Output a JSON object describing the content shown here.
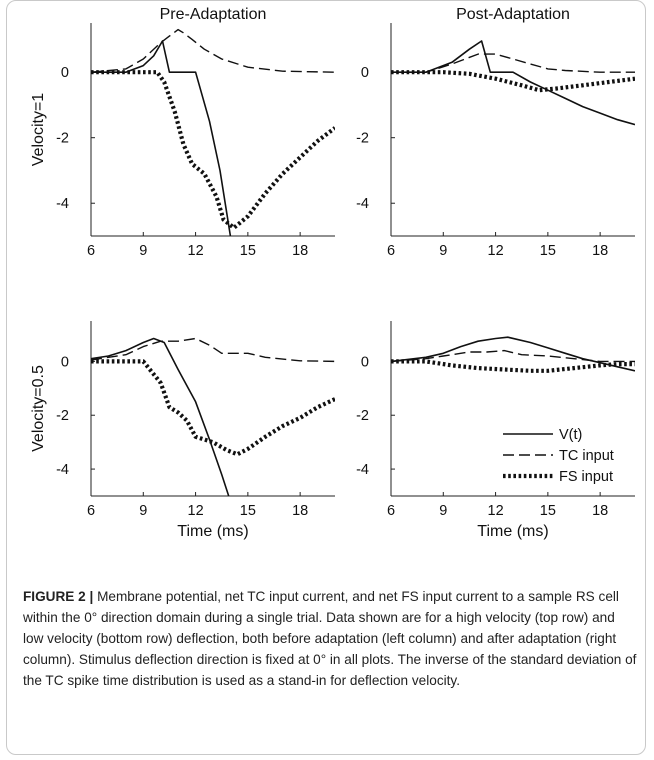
{
  "chart_data": [
    {
      "type": "line",
      "title": "Pre-Adaptation",
      "ylabel": "Velocity=1",
      "xlabel": "",
      "xlim": [
        6,
        20
      ],
      "ylim": [
        -5,
        1.5
      ],
      "xticks": [
        6,
        9,
        12,
        15,
        18
      ],
      "yticks": [
        -4,
        -2,
        0
      ],
      "series": [
        {
          "name": "V(t)",
          "style": "solid",
          "points": [
            [
              6,
              0
            ],
            [
              8,
              0
            ],
            [
              9,
              0.2
            ],
            [
              9.6,
              0.5
            ],
            [
              10.1,
              0.95
            ],
            [
              10.5,
              0
            ],
            [
              12,
              0
            ],
            [
              12.8,
              -1.5
            ],
            [
              13.4,
              -3
            ],
            [
              14,
              -5
            ]
          ]
        },
        {
          "name": "TC input",
          "style": "dashed",
          "points": [
            [
              6,
              0
            ],
            [
              8,
              0.1
            ],
            [
              9,
              0.4
            ],
            [
              10,
              0.9
            ],
            [
              10.5,
              1.1
            ],
            [
              11,
              1.3
            ],
            [
              11.3,
              1.2
            ],
            [
              11.8,
              1
            ],
            [
              12.5,
              0.7
            ],
            [
              13.5,
              0.4
            ],
            [
              15,
              0.15
            ],
            [
              17,
              0.03
            ],
            [
              20,
              0
            ]
          ]
        },
        {
          "name": "FS input",
          "style": "dotted",
          "points": [
            [
              6,
              0
            ],
            [
              9.8,
              0
            ],
            [
              10.2,
              -0.3
            ],
            [
              10.8,
              -1.2
            ],
            [
              11.3,
              -2.2
            ],
            [
              11.8,
              -2.8
            ],
            [
              12.5,
              -3.1
            ],
            [
              13.2,
              -3.8
            ],
            [
              13.6,
              -4.5
            ],
            [
              14.2,
              -4.75
            ],
            [
              15,
              -4.4
            ],
            [
              16,
              -3.7
            ],
            [
              17,
              -3.1
            ],
            [
              18,
              -2.6
            ],
            [
              19,
              -2.1
            ],
            [
              20,
              -1.7
            ]
          ]
        }
      ]
    },
    {
      "type": "line",
      "title": "Post-Adaptation",
      "ylabel": "",
      "xlabel": "",
      "xlim": [
        6,
        20
      ],
      "ylim": [
        -5,
        1.5
      ],
      "xticks": [
        6,
        9,
        12,
        15,
        18
      ],
      "yticks": [
        -4,
        -2,
        0
      ],
      "series": [
        {
          "name": "V(t)",
          "style": "solid",
          "points": [
            [
              6,
              0
            ],
            [
              8,
              0
            ],
            [
              9.5,
              0.3
            ],
            [
              10.5,
              0.7
            ],
            [
              11.2,
              0.95
            ],
            [
              11.7,
              0
            ],
            [
              13,
              0
            ],
            [
              14,
              -0.3
            ],
            [
              15,
              -0.55
            ],
            [
              16,
              -0.8
            ],
            [
              17,
              -1.05
            ],
            [
              18,
              -1.25
            ],
            [
              19,
              -1.45
            ],
            [
              20,
              -1.6
            ]
          ]
        },
        {
          "name": "TC input",
          "style": "dashed",
          "points": [
            [
              6,
              0
            ],
            [
              8,
              0
            ],
            [
              9.5,
              0.25
            ],
            [
              11,
              0.55
            ],
            [
              12,
              0.55
            ],
            [
              13,
              0.4
            ],
            [
              14,
              0.25
            ],
            [
              15,
              0.1
            ],
            [
              16,
              0.05
            ],
            [
              18,
              0
            ],
            [
              20,
              0
            ]
          ]
        },
        {
          "name": "FS input",
          "style": "dotted",
          "points": [
            [
              6,
              0
            ],
            [
              9,
              0
            ],
            [
              10.5,
              -0.05
            ],
            [
              12,
              -0.2
            ],
            [
              13.5,
              -0.4
            ],
            [
              14.5,
              -0.55
            ],
            [
              15.5,
              -0.5
            ],
            [
              17,
              -0.4
            ],
            [
              18.5,
              -0.3
            ],
            [
              20,
              -0.2
            ]
          ]
        }
      ]
    },
    {
      "type": "line",
      "title": "",
      "ylabel": "Velocity=0.5",
      "xlabel": "Time (ms)",
      "xlim": [
        6,
        20
      ],
      "ylim": [
        -5,
        1.5
      ],
      "xticks": [
        6,
        9,
        12,
        15,
        18
      ],
      "yticks": [
        -4,
        -2,
        0
      ],
      "series": [
        {
          "name": "V(t)",
          "style": "solid",
          "points": [
            [
              6,
              0.1
            ],
            [
              7,
              0.2
            ],
            [
              8,
              0.4
            ],
            [
              9,
              0.7
            ],
            [
              9.6,
              0.85
            ],
            [
              10.2,
              0.7
            ],
            [
              11,
              -0.3
            ],
            [
              12,
              -1.5
            ],
            [
              12.8,
              -2.9
            ],
            [
              13.5,
              -4.2
            ],
            [
              13.9,
              -5
            ]
          ]
        },
        {
          "name": "TC input",
          "style": "dashed",
          "points": [
            [
              6,
              0.05
            ],
            [
              8,
              0.25
            ],
            [
              9,
              0.55
            ],
            [
              10,
              0.75
            ],
            [
              11,
              0.75
            ],
            [
              12,
              0.85
            ],
            [
              12.8,
              0.6
            ],
            [
              13.5,
              0.3
            ],
            [
              15,
              0.3
            ],
            [
              16,
              0.15
            ],
            [
              18,
              0.02
            ],
            [
              20,
              0
            ]
          ]
        },
        {
          "name": "FS input",
          "style": "dotted",
          "points": [
            [
              6,
              0
            ],
            [
              9,
              0
            ],
            [
              10,
              -0.8
            ],
            [
              10.5,
              -1.7
            ],
            [
              11,
              -1.9
            ],
            [
              11.5,
              -2.2
            ],
            [
              12,
              -2.8
            ],
            [
              13,
              -3
            ],
            [
              13.8,
              -3.3
            ],
            [
              14.4,
              -3.45
            ],
            [
              15,
              -3.25
            ],
            [
              16,
              -2.8
            ],
            [
              17,
              -2.4
            ],
            [
              18,
              -2.1
            ],
            [
              19,
              -1.7
            ],
            [
              20,
              -1.4
            ]
          ]
        }
      ]
    },
    {
      "type": "line",
      "title": "",
      "ylabel": "",
      "xlabel": "Time (ms)",
      "xlim": [
        6,
        20
      ],
      "ylim": [
        -5,
        1.5
      ],
      "xticks": [
        6,
        9,
        12,
        15,
        18
      ],
      "yticks": [
        -4,
        -2,
        0
      ],
      "legend": "bottom-right",
      "series": [
        {
          "name": "V(t)",
          "style": "solid",
          "points": [
            [
              6,
              0
            ],
            [
              8,
              0.15
            ],
            [
              9,
              0.3
            ],
            [
              10,
              0.55
            ],
            [
              11,
              0.75
            ],
            [
              12,
              0.85
            ],
            [
              12.7,
              0.9
            ],
            [
              14,
              0.7
            ],
            [
              15,
              0.5
            ],
            [
              16,
              0.3
            ],
            [
              17,
              0.1
            ],
            [
              18,
              -0.05
            ],
            [
              19,
              -0.2
            ],
            [
              20,
              -0.35
            ]
          ]
        },
        {
          "name": "TC input",
          "style": "dashed",
          "points": [
            [
              6,
              0
            ],
            [
              8,
              0.1
            ],
            [
              9,
              0.2
            ],
            [
              10.5,
              0.35
            ],
            [
              11.5,
              0.35
            ],
            [
              12.5,
              0.4
            ],
            [
              13.5,
              0.25
            ],
            [
              15,
              0.2
            ],
            [
              16.5,
              0.1
            ],
            [
              18,
              0
            ],
            [
              20,
              0
            ]
          ]
        },
        {
          "name": "FS input",
          "style": "dotted",
          "points": [
            [
              6,
              0
            ],
            [
              8,
              0
            ],
            [
              9.5,
              -0.15
            ],
            [
              11,
              -0.25
            ],
            [
              12.5,
              -0.3
            ],
            [
              14,
              -0.35
            ],
            [
              15,
              -0.35
            ],
            [
              16.5,
              -0.25
            ],
            [
              18,
              -0.15
            ],
            [
              19,
              -0.1
            ],
            [
              20,
              -0.1
            ]
          ]
        }
      ]
    }
  ],
  "caption": {
    "label": "FIGURE 2 |",
    "text": "Membrane potential, net TC input current, and net FS input current to a sample RS cell within the 0° direction domain during a single trial. Data shown are for a high velocity (top row) and low velocity (bottom row) deflection, both before adaptation (left column) and after adaptation (right column). Stimulus deflection direction is fixed at 0° in all plots. The inverse of the standard deviation of the TC spike time distribution is used as a stand-in for deflection velocity."
  }
}
